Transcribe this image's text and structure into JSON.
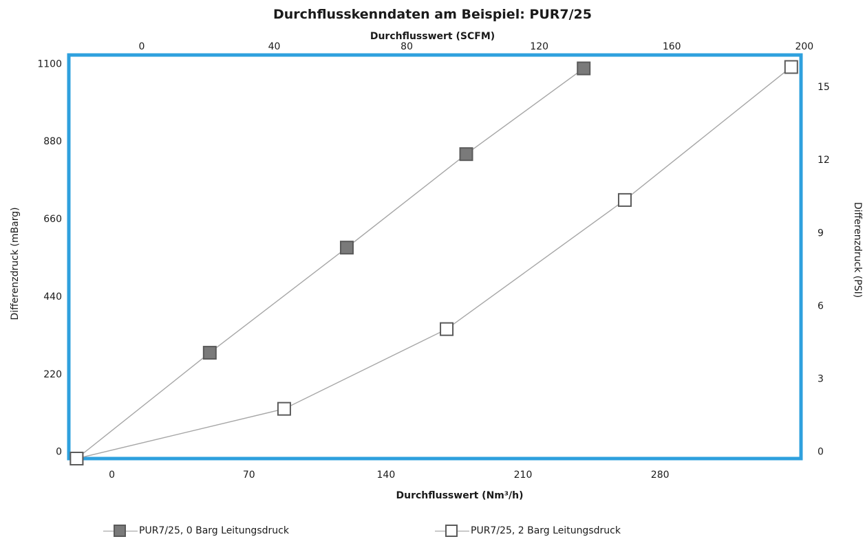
{
  "chart_data": {
    "type": "scatter",
    "title": "Durchflusskenndaten am Beispiel: PUR7/25",
    "xlabel": "Durchflusswert (Nm³/h)",
    "ylabel": "Differenzdruck (mBarg)",
    "x2label": "Durchflusswert (SCFM)",
    "y2label": "Differenzdruck (PSI)",
    "xlim": [
      -22,
      352
    ],
    "ylim": [
      -20,
      1124
    ],
    "x2lim": [
      -22,
      199
    ],
    "y2lim": [
      -0.29,
      16.3
    ],
    "x_ticks": [
      0,
      70,
      140,
      210,
      280
    ],
    "y_ticks": [
      0,
      220,
      440,
      660,
      880,
      1100
    ],
    "x2_ticks": [
      0,
      40,
      80,
      120,
      160,
      200
    ],
    "y2_ticks": [
      0,
      3,
      6,
      9,
      12,
      15
    ],
    "series": [
      {
        "name": "PUR7/25, 0 Barg  Leitungsdruck",
        "marker": "filled-square",
        "color": "#7a7a7a",
        "x": [
          -18,
          50,
          120,
          181,
          241
        ],
        "y": [
          -20,
          280,
          578,
          843,
          1086
        ]
      },
      {
        "name": "PUR7/25, 2 Barg  Leitungsdruck",
        "marker": "open-square",
        "color": "#ffffff",
        "x": [
          -18,
          88,
          171,
          262,
          347
        ],
        "y": [
          -20,
          121,
          347,
          713,
          1090
        ]
      }
    ],
    "grid": false,
    "legend_position": "bottom"
  },
  "colors": {
    "frame": "#2ea0de",
    "line": "#a6a6a6",
    "marker_edge": "#5a5a5a"
  }
}
